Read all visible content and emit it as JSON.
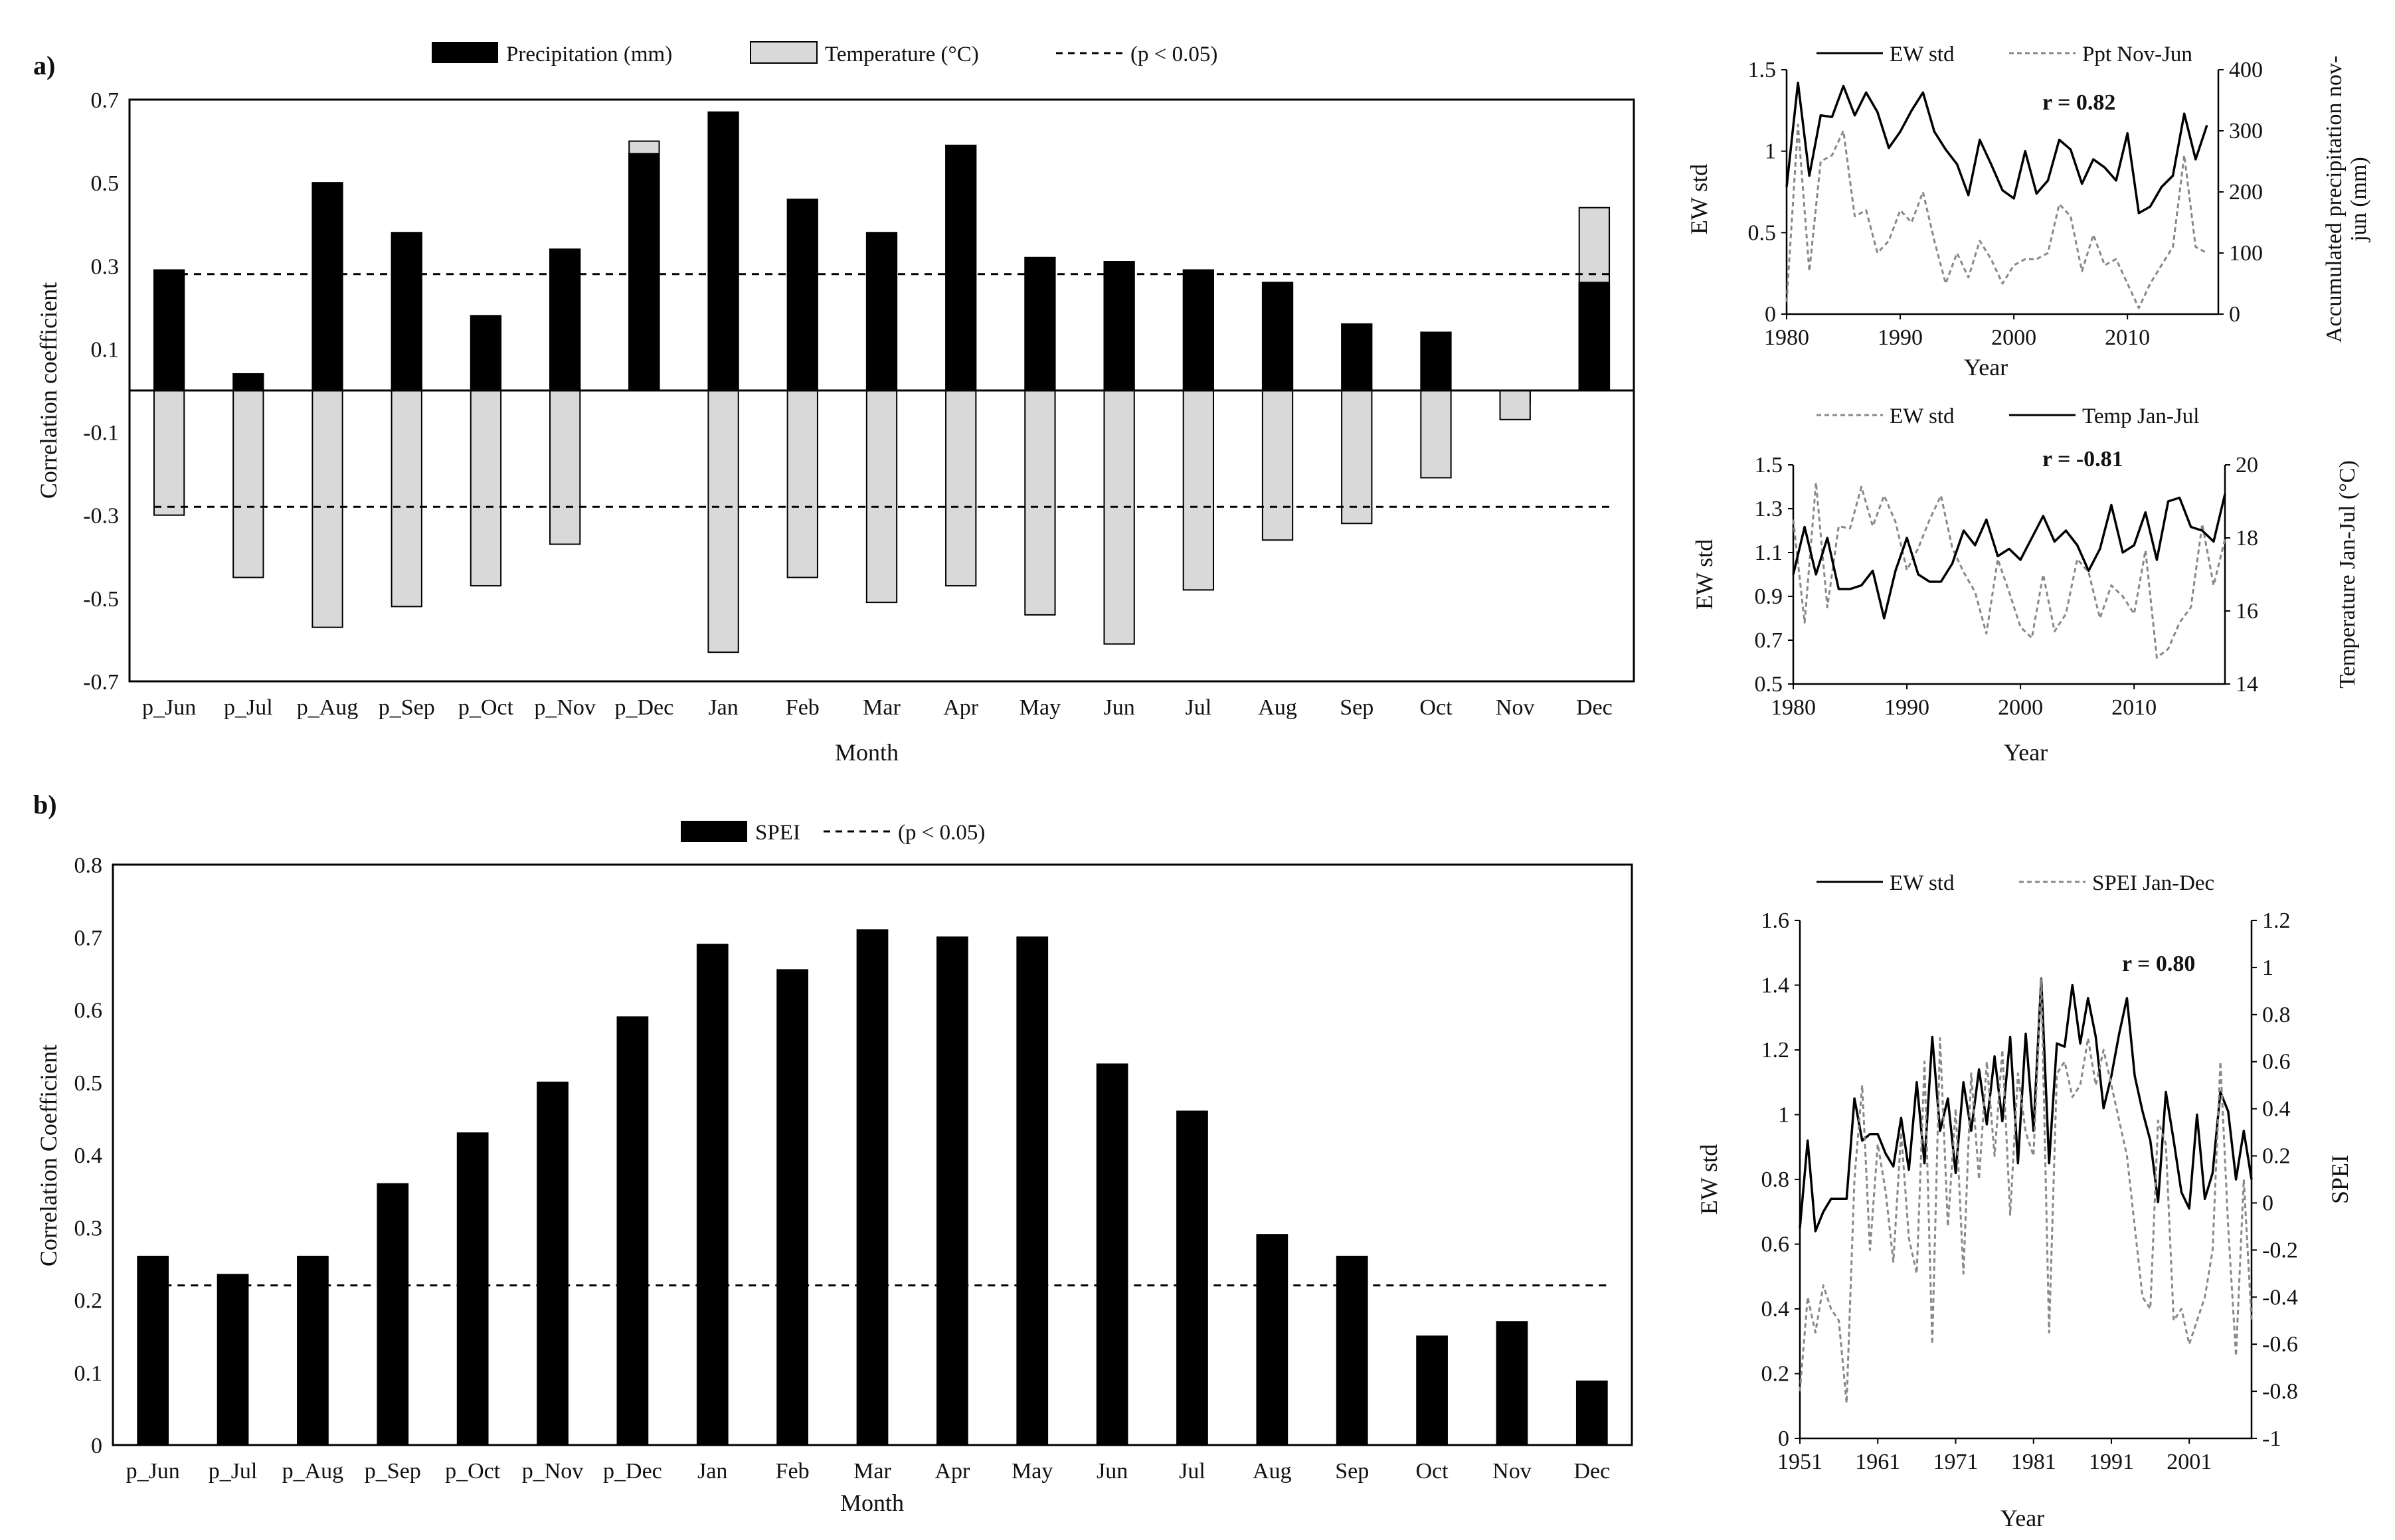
{
  "panel_labels": {
    "a": "a)",
    "b": "b)"
  },
  "chart_data": [
    {
      "id": "a_main",
      "type": "bar",
      "title": "",
      "xlabel": "Month",
      "ylabel": "Correlation coefficient",
      "ylim": [
        -0.7,
        0.7
      ],
      "yticks": [
        "0.7",
        "0.5",
        "0.3",
        "0.1",
        "-0.1",
        "-0.3",
        "-0.5",
        "-0.7"
      ],
      "categories": [
        "p_Jun",
        "p_Jul",
        "p_Aug",
        "p_Sep",
        "p_Oct",
        "p_Nov",
        "p_Dec",
        "Jan",
        "Feb",
        "Mar",
        "Apr",
        "May",
        "Jun",
        "Jul",
        "Aug",
        "Sep",
        "Oct",
        "Nov",
        "Dec"
      ],
      "series": [
        {
          "name": "Precipitation (mm)",
          "color": "#000000",
          "values": [
            0.29,
            0.04,
            0.5,
            0.38,
            0.18,
            0.34,
            0.57,
            0.67,
            0.46,
            0.38,
            0.59,
            0.32,
            0.31,
            0.29,
            0.26,
            0.16,
            0.14,
            -0.03,
            0.26
          ]
        },
        {
          "name": "Temperature (°C)",
          "color": "#d9d9d9",
          "values": [
            -0.3,
            -0.45,
            -0.57,
            -0.52,
            -0.47,
            -0.37,
            0.6,
            -0.63,
            -0.45,
            -0.51,
            -0.47,
            -0.54,
            -0.61,
            -0.48,
            -0.36,
            -0.32,
            -0.21,
            -0.07,
            0.44
          ]
        }
      ],
      "significance": {
        "label": "(p < 0.05)",
        "values": [
          0.28,
          -0.28
        ]
      }
    },
    {
      "id": "a_top",
      "type": "line",
      "xlabel": "Year",
      "ylabel": "EW std",
      "ylabel_right": [
        "Accumulated precipitation nov-",
        "jun  (mm)"
      ],
      "xlim": [
        1980,
        2018
      ],
      "xticks": [
        "1980",
        "1990",
        "2000",
        "2010"
      ],
      "ylim": [
        0,
        1.5
      ],
      "yticks": [
        "0",
        "0.5",
        "1",
        "1.5"
      ],
      "ylim_right": [
        0,
        400
      ],
      "yticks_right": [
        "0",
        "100",
        "200",
        "300",
        "400"
      ],
      "annotation": "r = 0.82",
      "x": [
        1980,
        1981,
        1982,
        1983,
        1984,
        1985,
        1986,
        1987,
        1988,
        1989,
        1990,
        1991,
        1992,
        1993,
        1994,
        1995,
        1996,
        1997,
        1998,
        1999,
        2000,
        2001,
        2002,
        2003,
        2004,
        2005,
        2006,
        2007,
        2008,
        2009,
        2010,
        2011,
        2012,
        2013,
        2014,
        2015,
        2016,
        2017
      ],
      "series": [
        {
          "name": "EW std",
          "style": "solid",
          "axis": "left",
          "values": [
            0.78,
            1.42,
            0.85,
            1.22,
            1.21,
            1.4,
            1.22,
            1.36,
            1.24,
            1.02,
            1.12,
            1.25,
            1.36,
            1.12,
            1.01,
            0.92,
            0.73,
            1.07,
            0.92,
            0.76,
            0.71,
            1.0,
            0.74,
            0.82,
            1.07,
            1.01,
            0.8,
            0.95,
            0.9,
            0.82,
            1.11,
            0.62,
            0.66,
            0.78,
            0.85,
            1.23,
            0.95,
            1.16
          ]
        },
        {
          "name": "Ppt Nov-Jun",
          "style": "dashed",
          "axis": "right",
          "values": [
            20,
            310,
            70,
            250,
            260,
            300,
            160,
            170,
            100,
            120,
            170,
            150,
            200,
            120,
            50,
            100,
            60,
            120,
            90,
            50,
            80,
            90,
            90,
            100,
            180,
            160,
            70,
            130,
            80,
            90,
            50,
            10,
            50,
            80,
            110,
            260,
            110,
            100
          ]
        }
      ]
    },
    {
      "id": "a_bottom",
      "type": "line",
      "xlabel": "Year",
      "ylabel": "EW std",
      "ylabel_right": "Temperature Jan-Jul  (°C)",
      "xlim": [
        1980,
        2018
      ],
      "xticks": [
        "1980",
        "1990",
        "2000",
        "2010"
      ],
      "ylim": [
        0.5,
        1.5
      ],
      "yticks": [
        "0.5",
        "0.7",
        "0.9",
        "1.1",
        "1.3",
        "1.5"
      ],
      "ylim_right": [
        14,
        20
      ],
      "yticks_right": [
        "14",
        "16",
        "18",
        "20"
      ],
      "annotation": "r = -0.81",
      "x": [
        1980,
        1981,
        1982,
        1983,
        1984,
        1985,
        1986,
        1987,
        1988,
        1989,
        1990,
        1991,
        1992,
        1993,
        1994,
        1995,
        1996,
        1997,
        1998,
        1999,
        2000,
        2001,
        2002,
        2003,
        2004,
        2005,
        2006,
        2007,
        2008,
        2009,
        2010,
        2011,
        2012,
        2013,
        2014,
        2015,
        2016,
        2017,
        2018
      ],
      "series": [
        {
          "name": "EW std",
          "style": "dashed",
          "axis": "left",
          "values": [
            1.25,
            0.78,
            1.42,
            0.85,
            1.22,
            1.21,
            1.4,
            1.22,
            1.36,
            1.24,
            1.02,
            1.12,
            1.25,
            1.36,
            1.12,
            1.01,
            0.92,
            0.73,
            1.07,
            0.92,
            0.76,
            0.71,
            1.0,
            0.74,
            0.82,
            1.07,
            1.01,
            0.8,
            0.95,
            0.9,
            0.82,
            1.11,
            0.62,
            0.66,
            0.78,
            0.85,
            1.23,
            0.95,
            1.16
          ]
        },
        {
          "name": "Temp Jan-Jul",
          "style": "solid",
          "axis": "right",
          "values": [
            17.0,
            18.3,
            17.0,
            18.0,
            16.6,
            16.6,
            16.7,
            17.1,
            15.8,
            17.1,
            18.0,
            17.0,
            16.8,
            16.8,
            17.3,
            18.2,
            17.8,
            18.5,
            17.5,
            17.7,
            17.4,
            18.0,
            18.6,
            17.9,
            18.2,
            17.8,
            17.1,
            17.7,
            18.9,
            17.6,
            17.8,
            18.7,
            17.4,
            19.0,
            19.1,
            18.3,
            18.2,
            17.9,
            19.2
          ]
        }
      ]
    },
    {
      "id": "b_main",
      "type": "bar",
      "title": "",
      "xlabel": "Month",
      "ylabel": "Correlation Coefficient",
      "ylim": [
        0,
        0.8
      ],
      "yticks": [
        "0",
        "0.1",
        "0.2",
        "0.3",
        "0.4",
        "0.5",
        "0.6",
        "0.7",
        "0.8"
      ],
      "categories": [
        "p_Jun",
        "p_Jul",
        "p_Aug",
        "p_Sep",
        "p_Oct",
        "p_Nov",
        "p_Dec",
        "Jan",
        "Feb",
        "Mar",
        "Apr",
        "May",
        "Jun",
        "Jul",
        "Aug",
        "Sep",
        "Oct",
        "Nov",
        "Dec"
      ],
      "series": [
        {
          "name": "SPEI",
          "color": "#000000",
          "values": [
            0.26,
            0.235,
            0.26,
            0.36,
            0.43,
            0.5,
            0.59,
            0.69,
            0.655,
            0.71,
            0.7,
            0.7,
            0.525,
            0.46,
            0.29,
            0.26,
            0.15,
            0.17,
            0.088
          ]
        }
      ],
      "significance": {
        "label": "(p < 0.05)",
        "values": [
          0.22
        ]
      }
    },
    {
      "id": "b_right",
      "type": "line",
      "xlabel": "Year",
      "ylabel": "EW std",
      "ylabel_right": "SPEI",
      "xlim": [
        1951,
        2009
      ],
      "xticks": [
        "1951",
        "1961",
        "1971",
        "1981",
        "1991",
        "2001"
      ],
      "ylim": [
        0,
        1.6
      ],
      "yticks": [
        "0",
        "0.2",
        "0.4",
        "0.6",
        "0.8",
        "1",
        "1.2",
        "1.4",
        "1.6"
      ],
      "ylim_right": [
        -1,
        1.2
      ],
      "yticks_right": [
        "-1",
        "-0.8",
        "-0.6",
        "-0.4",
        "-0.2",
        "0",
        "0.2",
        "0.4",
        "0.6",
        "0.8",
        "1",
        "1.2"
      ],
      "annotation": "r = 0.80",
      "x": [
        1951,
        1952,
        1953,
        1954,
        1955,
        1956,
        1957,
        1958,
        1959,
        1960,
        1961,
        1962,
        1963,
        1964,
        1965,
        1966,
        1967,
        1968,
        1969,
        1970,
        1971,
        1972,
        1973,
        1974,
        1975,
        1976,
        1977,
        1978,
        1979,
        1980,
        1981,
        1982,
        1983,
        1984,
        1985,
        1986,
        1987,
        1988,
        1989,
        1990,
        1991,
        1992,
        1993,
        1994,
        1995,
        1996,
        1997,
        1998,
        1999,
        2000,
        2001,
        2002,
        2003,
        2004,
        2005,
        2006,
        2007,
        2008,
        2009
      ],
      "series": [
        {
          "name": "EW std",
          "style": "solid",
          "axis": "left",
          "values": [
            0.65,
            0.92,
            0.64,
            0.7,
            0.74,
            0.74,
            0.74,
            1.05,
            0.92,
            0.94,
            0.94,
            0.88,
            0.84,
            0.99,
            0.83,
            1.1,
            0.85,
            1.24,
            0.95,
            1.05,
            0.82,
            1.1,
            0.95,
            1.14,
            0.97,
            1.18,
            0.98,
            1.24,
            0.85,
            1.25,
            0.95,
            1.42,
            0.85,
            1.22,
            1.21,
            1.4,
            1.22,
            1.36,
            1.24,
            1.02,
            1.12,
            1.25,
            1.36,
            1.12,
            1.01,
            0.92,
            0.73,
            1.07,
            0.92,
            0.76,
            0.71,
            1.0,
            0.74,
            0.82,
            1.07,
            1.01,
            0.8,
            0.95,
            0.8
          ]
        },
        {
          "name": "SPEI Jan-Dec",
          "style": "dashed",
          "axis": "right",
          "values": [
            -0.8,
            -0.4,
            -0.55,
            -0.35,
            -0.45,
            -0.5,
            -0.85,
            0.1,
            0.5,
            -0.2,
            0.25,
            0.05,
            -0.25,
            0.3,
            -0.15,
            -0.3,
            0.6,
            -0.6,
            0.7,
            -0.1,
            0.4,
            -0.3,
            0.55,
            0.1,
            0.6,
            0.2,
            0.65,
            -0.05,
            0.55,
            0.3,
            0.2,
            0.95,
            -0.55,
            0.55,
            0.6,
            0.45,
            0.5,
            0.7,
            0.5,
            0.65,
            0.5,
            0.35,
            0.2,
            -0.1,
            -0.4,
            -0.45,
            0.35,
            0.25,
            -0.5,
            -0.45,
            -0.6,
            -0.5,
            -0.4,
            -0.2,
            0.6,
            -0.1,
            -0.65,
            0.1,
            -0.5
          ]
        }
      ]
    }
  ]
}
